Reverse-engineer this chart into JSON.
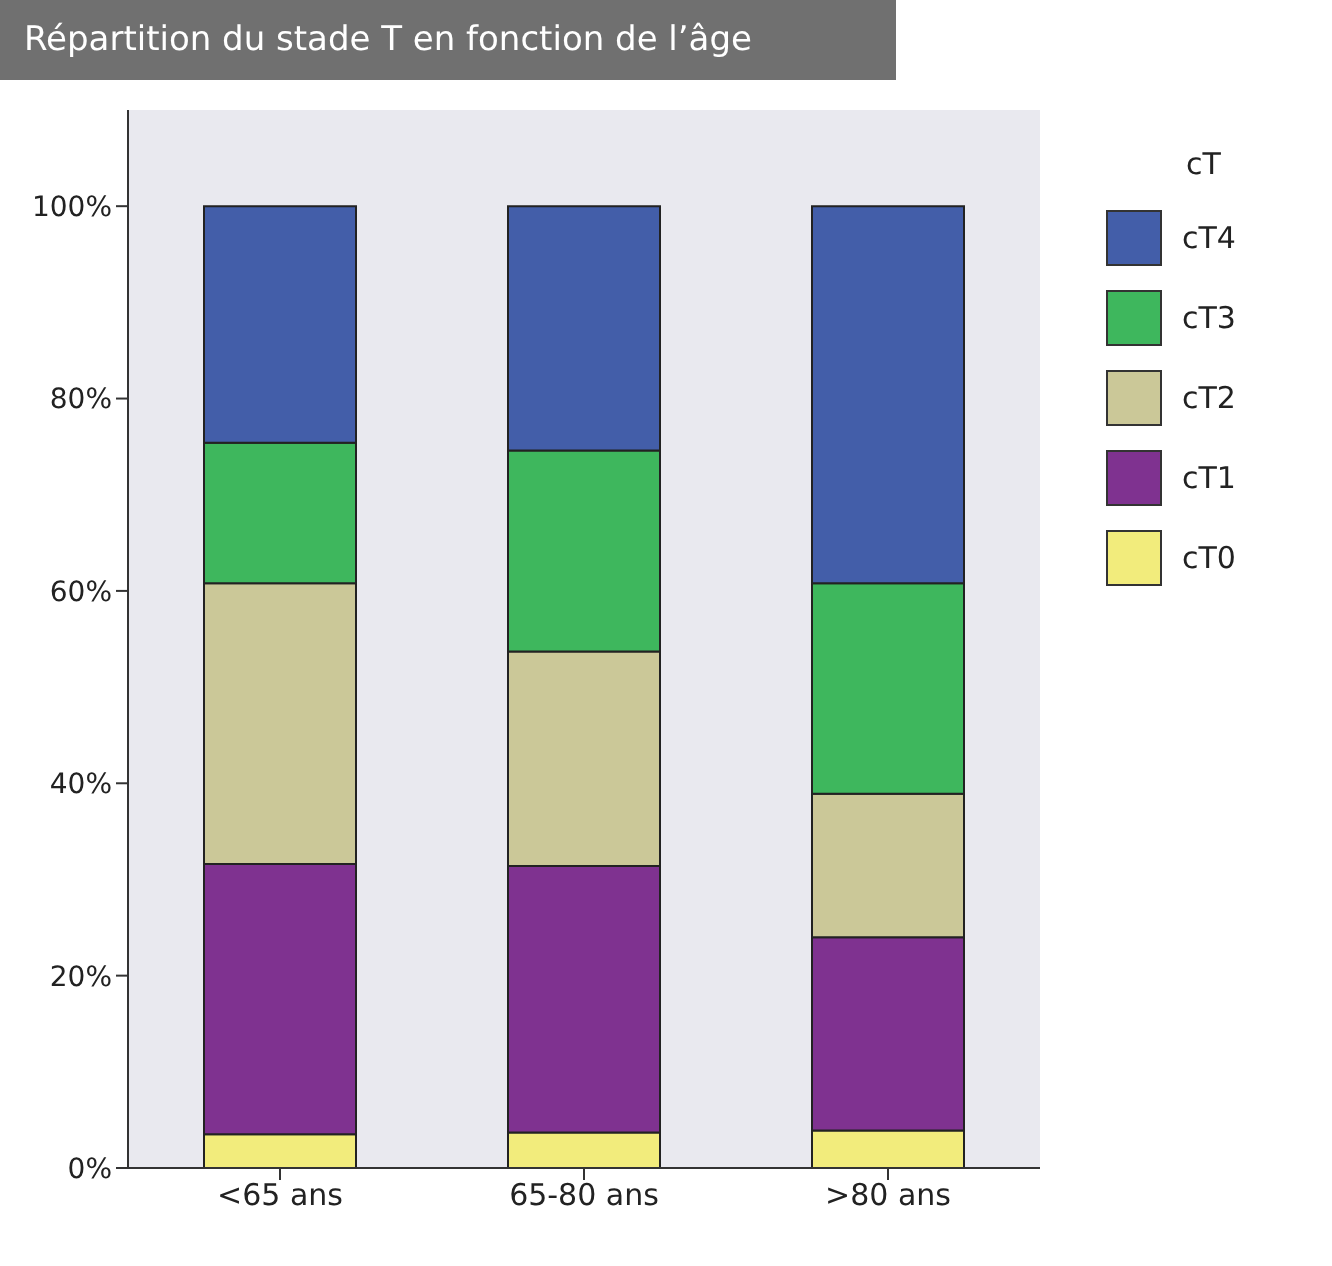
{
  "chart_data": {
    "type": "bar",
    "title": "Répartition du stade T en fonction de l’âge",
    "legend_title": "cT",
    "stacked": true,
    "legend": "top right",
    "categories": [
      "<65 ans",
      "65-80 ans",
      ">80 ans"
    ],
    "series": [
      {
        "name": "cT0",
        "color": "#f2ec7c",
        "values": [
          3.5,
          3.7,
          3.9
        ]
      },
      {
        "name": "cT1",
        "color": "#7f3290",
        "values": [
          28.1,
          27.7,
          20.1
        ]
      },
      {
        "name": "cT2",
        "color": "#cbc898",
        "values": [
          29.2,
          22.3,
          14.9
        ]
      },
      {
        "name": "cT3",
        "color": "#3eb75d",
        "values": [
          14.6,
          20.9,
          21.9
        ]
      },
      {
        "name": "cT4",
        "color": "#435ea9",
        "values": [
          24.6,
          25.4,
          39.2
        ]
      }
    ],
    "ylim": [
      0,
      110
    ],
    "yticks": [
      {
        "value": 0,
        "label": "0%"
      },
      {
        "value": 20,
        "label": "20%"
      },
      {
        "value": 40,
        "label": "40%"
      },
      {
        "value": 60,
        "label": "60%"
      },
      {
        "value": 80,
        "label": "80%"
      },
      {
        "value": 100,
        "label": "100%"
      }
    ]
  }
}
